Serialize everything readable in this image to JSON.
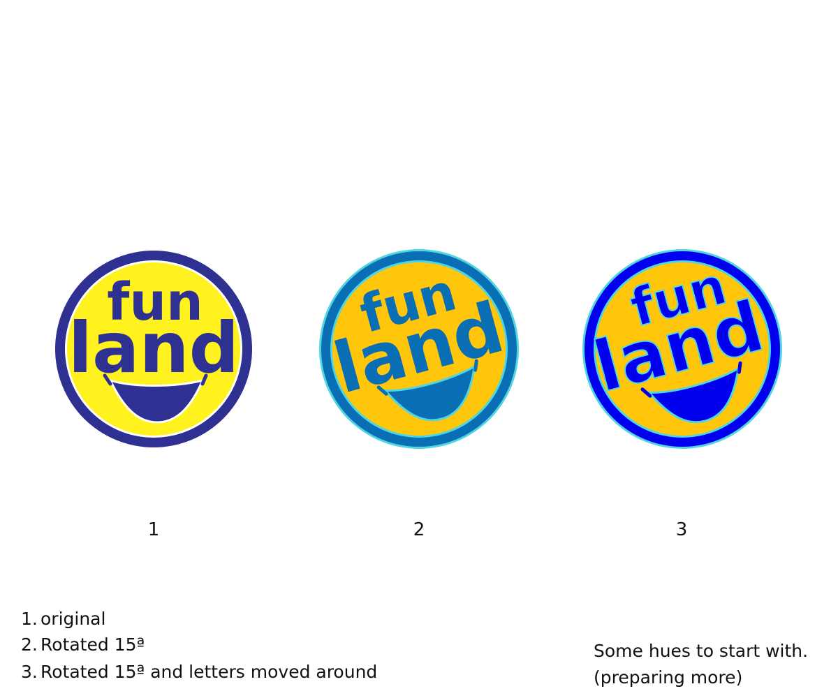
{
  "logos": [
    {
      "word1": "fun",
      "word2": "land",
      "caption": "1"
    },
    {
      "word1": "fun",
      "word2": "land",
      "caption": "2"
    },
    {
      "word1": "fun",
      "word2": "land",
      "caption": "3"
    }
  ],
  "notes": [
    {
      "number": "1.",
      "text": "original"
    },
    {
      "number": "2.",
      "text": "Rotated 15ª"
    },
    {
      "number": "3.",
      "text": "Rotated 15ª and letters moved around"
    }
  ],
  "side_note": [
    "Some hues to start with.",
    "(preparing more)"
  ]
}
